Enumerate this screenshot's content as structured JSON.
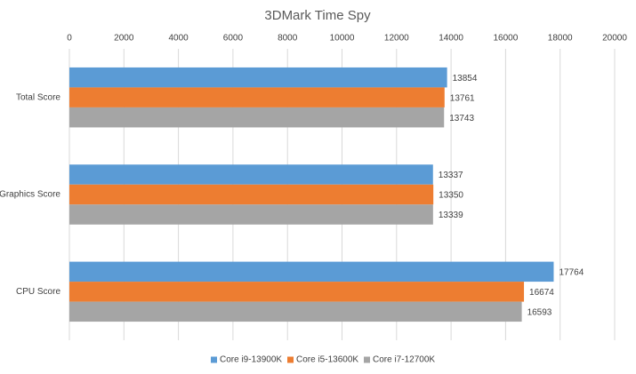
{
  "chart_data": {
    "type": "bar",
    "orientation": "horizontal",
    "title": "3DMark Time Spy",
    "categories": [
      "Total Score",
      "Graphics Score",
      "CPU Score"
    ],
    "series": [
      {
        "name": "Core i9-13900K",
        "color": "#5b9bd5",
        "values": [
          13854,
          13337,
          17764
        ]
      },
      {
        "name": "Core i5-13600K",
        "color": "#ed7d31",
        "values": [
          13761,
          13350,
          16674
        ]
      },
      {
        "name": "Core i7-12700K",
        "color": "#a5a5a5",
        "values": [
          13743,
          13339,
          16593
        ]
      }
    ],
    "xlim": [
      0,
      20000
    ],
    "xticks": [
      0,
      2000,
      4000,
      6000,
      8000,
      10000,
      12000,
      14000,
      16000,
      18000,
      20000
    ],
    "grid": true,
    "legend": "bottom"
  }
}
